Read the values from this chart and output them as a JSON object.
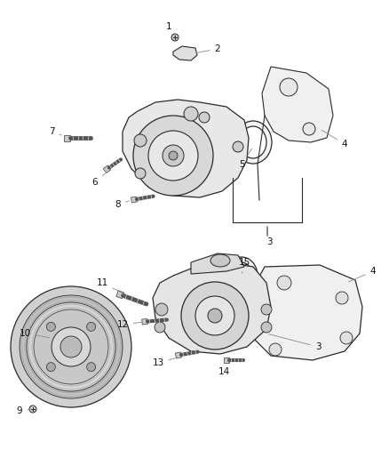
{
  "bg_color": "#ffffff",
  "line_color": "#2a2a2a",
  "gray_color": "#888888",
  "label_color": "#111111",
  "label_fontsize": 7.5,
  "fig_width": 4.38,
  "fig_height": 5.33,
  "dpi": 100
}
